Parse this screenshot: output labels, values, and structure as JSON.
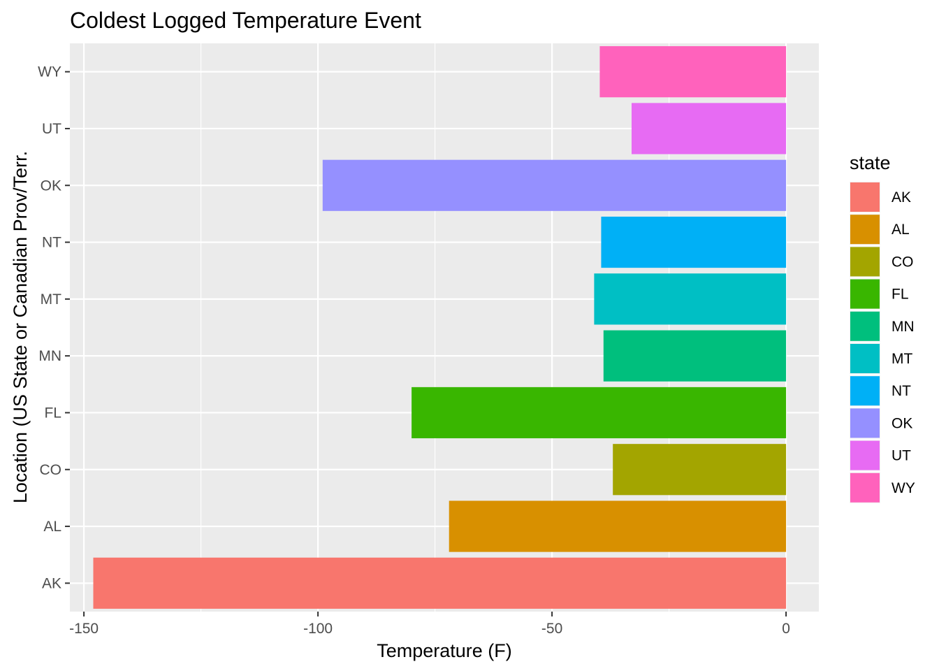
{
  "chart_data": {
    "type": "bar",
    "orientation": "horizontal",
    "title": "Coldest Logged Temperature Event",
    "xlabel": "Temperature (F)",
    "ylabel": "Location (US State or Canadian Prov/Terr.",
    "categories": [
      "AK",
      "AL",
      "CO",
      "FL",
      "MN",
      "MT",
      "NT",
      "OK",
      "UT",
      "WY"
    ],
    "values": [
      -148,
      -72,
      -37,
      -80,
      -39,
      -41,
      -39.5,
      -99,
      -33,
      -39.8
    ],
    "colors": [
      "#F8766D",
      "#D89000",
      "#A3A500",
      "#39B600",
      "#00BF7D",
      "#00BFC4",
      "#00B0F6",
      "#9590FF",
      "#E76BF3",
      "#FF62BC"
    ],
    "xlim": [
      -153,
      7
    ],
    "x_ticks": [
      -150,
      -100,
      -50,
      0
    ],
    "x_tick_labels": [
      "-150",
      "-100",
      "-50",
      "0"
    ],
    "grid": true,
    "legend": {
      "title": "state",
      "position": "right",
      "entries": [
        "AK",
        "AL",
        "CO",
        "FL",
        "MN",
        "MT",
        "NT",
        "OK",
        "UT",
        "WY"
      ]
    }
  }
}
